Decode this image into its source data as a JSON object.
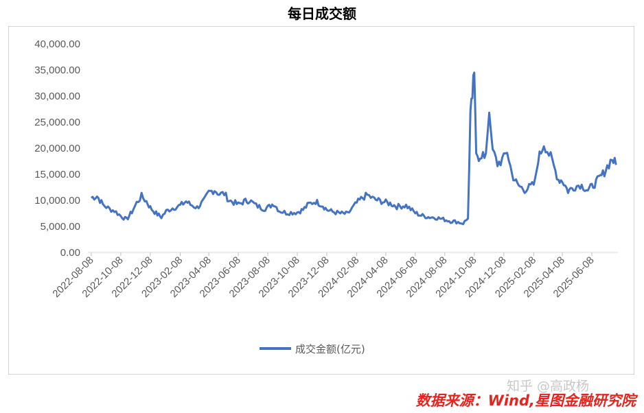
{
  "chart_data": {
    "type": "line",
    "title": "每日成交额",
    "ylim": [
      0,
      40000
    ],
    "y_ticks": [
      "0.00",
      "5,000.00",
      "10,000.00",
      "15,000.00",
      "20,000.00",
      "25,000.00",
      "30,000.00",
      "35,000.00",
      "40,000.00"
    ],
    "x_ticks": [
      "2022-08-08",
      "2022-10-08",
      "2022-12-08",
      "2023-02-08",
      "2023-04-08",
      "2023-06-08",
      "2023-08-08",
      "2023-10-08",
      "2023-12-08",
      "2024-02-08",
      "2024-04-08",
      "2024-06-08",
      "2024-08-08",
      "2024-10-08",
      "2024-12-08",
      "2025-02-08",
      "2025-04-08",
      "2025-06-08"
    ],
    "grid": false,
    "legend_position": "bottom",
    "series": [
      {
        "name": "成交金额(亿元)",
        "color": "#4472c4",
        "points": [
          [
            "2022-08-08",
            10500
          ],
          [
            "2022-08-20",
            10800
          ],
          [
            "2022-09-01",
            9200
          ],
          [
            "2022-09-15",
            8300
          ],
          [
            "2022-09-25",
            8000
          ],
          [
            "2022-10-08",
            7000
          ],
          [
            "2022-10-20",
            6300
          ],
          [
            "2022-10-31",
            7800
          ],
          [
            "2022-11-10",
            9500
          ],
          [
            "2022-11-20",
            10800
          ],
          [
            "2022-11-30",
            9800
          ],
          [
            "2022-12-08",
            8600
          ],
          [
            "2022-12-20",
            7500
          ],
          [
            "2022-12-31",
            6800
          ],
          [
            "2023-01-10",
            7900
          ],
          [
            "2023-01-20",
            8400
          ],
          [
            "2023-02-08",
            9000
          ],
          [
            "2023-02-20",
            9800
          ],
          [
            "2023-03-01",
            9200
          ],
          [
            "2023-03-15",
            8600
          ],
          [
            "2023-03-30",
            10000
          ],
          [
            "2023-04-08",
            11500
          ],
          [
            "2023-04-20",
            12000
          ],
          [
            "2023-04-30",
            11200
          ],
          [
            "2023-05-10",
            11300
          ],
          [
            "2023-05-20",
            10000
          ],
          [
            "2023-06-08",
            9200
          ],
          [
            "2023-06-20",
            9800
          ],
          [
            "2023-07-01",
            10000
          ],
          [
            "2023-07-15",
            9000
          ],
          [
            "2023-07-31",
            8400
          ],
          [
            "2023-08-08",
            8600
          ],
          [
            "2023-08-20",
            9400
          ],
          [
            "2023-09-01",
            8000
          ],
          [
            "2023-09-15",
            7600
          ],
          [
            "2023-10-08",
            7700
          ],
          [
            "2023-10-20",
            8200
          ],
          [
            "2023-11-01",
            9300
          ],
          [
            "2023-11-15",
            9800
          ],
          [
            "2023-11-30",
            9000
          ],
          [
            "2023-12-08",
            8200
          ],
          [
            "2023-12-20",
            7800
          ],
          [
            "2024-01-05",
            7500
          ],
          [
            "2024-01-20",
            7400
          ],
          [
            "2024-02-08",
            9500
          ],
          [
            "2024-02-20",
            10500
          ],
          [
            "2024-03-01",
            11000
          ],
          [
            "2024-03-15",
            10200
          ],
          [
            "2024-04-08",
            9600
          ],
          [
            "2024-04-20",
            9300
          ],
          [
            "2024-05-01",
            8800
          ],
          [
            "2024-05-20",
            9000
          ],
          [
            "2024-06-08",
            7600
          ],
          [
            "2024-06-20",
            7100
          ],
          [
            "2024-07-05",
            6800
          ],
          [
            "2024-07-20",
            6700
          ],
          [
            "2024-08-08",
            6300
          ],
          [
            "2024-08-20",
            6000
          ],
          [
            "2024-09-01",
            5900
          ],
          [
            "2024-09-15",
            5600
          ],
          [
            "2024-09-25",
            6500
          ],
          [
            "2024-09-30",
            26000
          ],
          [
            "2024-10-04",
            30000
          ],
          [
            "2024-10-08",
            34500
          ],
          [
            "2024-10-12",
            20000
          ],
          [
            "2024-10-20",
            17500
          ],
          [
            "2024-11-01",
            19000
          ],
          [
            "2024-11-08",
            26800
          ],
          [
            "2024-11-15",
            19500
          ],
          [
            "2024-11-25",
            17000
          ],
          [
            "2024-12-08",
            18000
          ],
          [
            "2024-12-15",
            19500
          ],
          [
            "2024-12-25",
            15000
          ],
          [
            "2025-01-05",
            13000
          ],
          [
            "2025-01-20",
            12000
          ],
          [
            "2025-02-08",
            13000
          ],
          [
            "2025-02-20",
            18500
          ],
          [
            "2025-03-01",
            21000
          ],
          [
            "2025-03-15",
            18200
          ],
          [
            "2025-03-31",
            14000
          ],
          [
            "2025-04-08",
            13800
          ],
          [
            "2025-04-20",
            11800
          ],
          [
            "2025-05-01",
            12500
          ],
          [
            "2025-05-15",
            13000
          ],
          [
            "2025-05-31",
            12000
          ],
          [
            "2025-06-08",
            12600
          ],
          [
            "2025-06-20",
            13800
          ],
          [
            "2025-07-01",
            15000
          ],
          [
            "2025-07-10",
            16500
          ],
          [
            "2025-07-20",
            18000
          ],
          [
            "2025-07-28",
            16800
          ]
        ]
      }
    ]
  },
  "source_text": "数据来源：Wind,星图金融研究院",
  "watermark_text": "知乎 @高政杨"
}
